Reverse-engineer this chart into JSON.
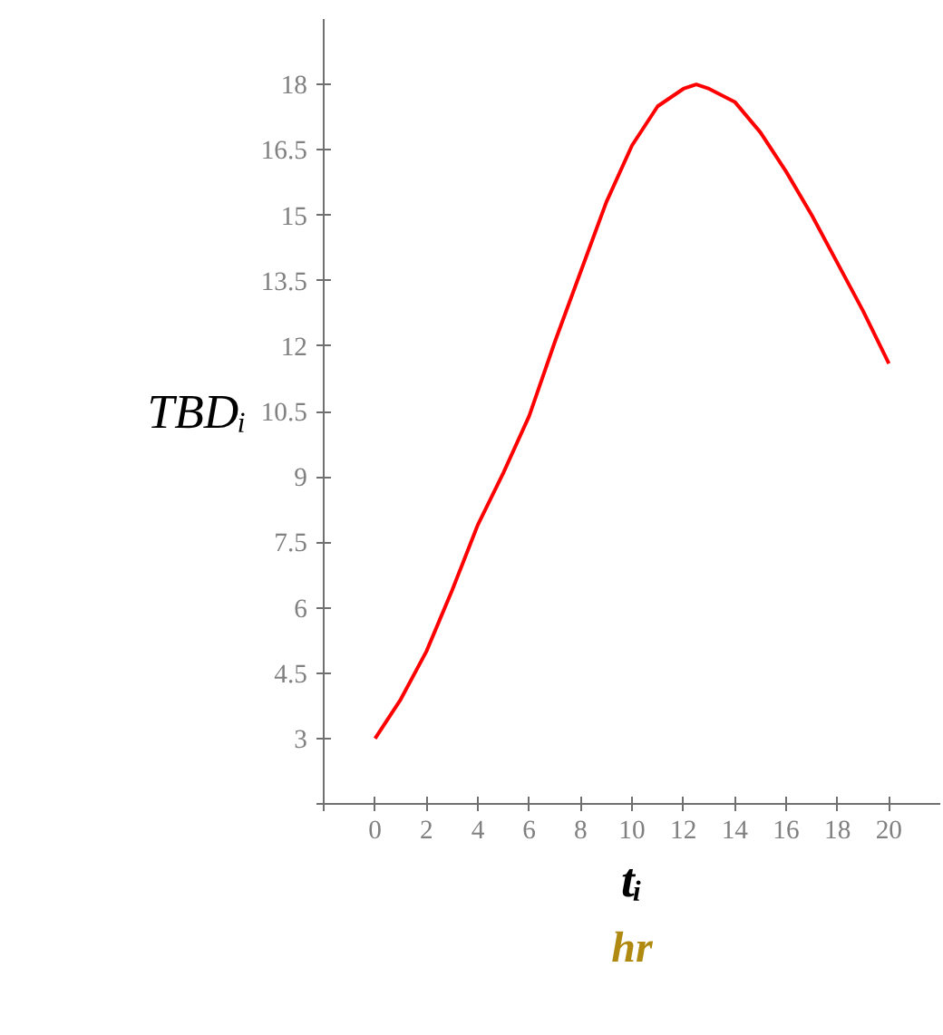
{
  "chart_data": {
    "type": "line",
    "xlabel": "tᵢ",
    "ylabel": "TBDᵢ",
    "annotations": [
      "hr"
    ],
    "x": [
      0,
      1,
      2,
      3,
      4,
      5,
      6,
      7,
      8,
      9,
      10,
      11,
      12,
      12.5,
      13,
      14,
      15,
      16,
      17,
      18,
      19,
      20
    ],
    "series": [
      {
        "color": "#ff0000",
        "values": [
          3.0,
          3.9,
          5.0,
          6.4,
          7.9,
          9.1,
          10.4,
          12.1,
          13.7,
          15.3,
          16.6,
          17.5,
          17.9,
          18.0,
          17.9,
          17.6,
          16.9,
          16.0,
          15.0,
          13.9,
          12.8,
          11.6
        ]
      }
    ],
    "xlim": [
      -2,
      22
    ],
    "ylim": [
      1.5,
      19.5
    ],
    "xticks": [
      {
        "value": -2,
        "label": null
      },
      0,
      2,
      4,
      6,
      8,
      10,
      12,
      14,
      16,
      18,
      20
    ],
    "yticks": [
      {
        "value": 1.5,
        "label": null
      },
      3,
      4.5,
      6,
      7.5,
      9,
      10.5,
      12,
      13.5,
      15,
      16.5,
      18
    ],
    "grid": false,
    "line_style": "solid",
    "marker": "none"
  }
}
